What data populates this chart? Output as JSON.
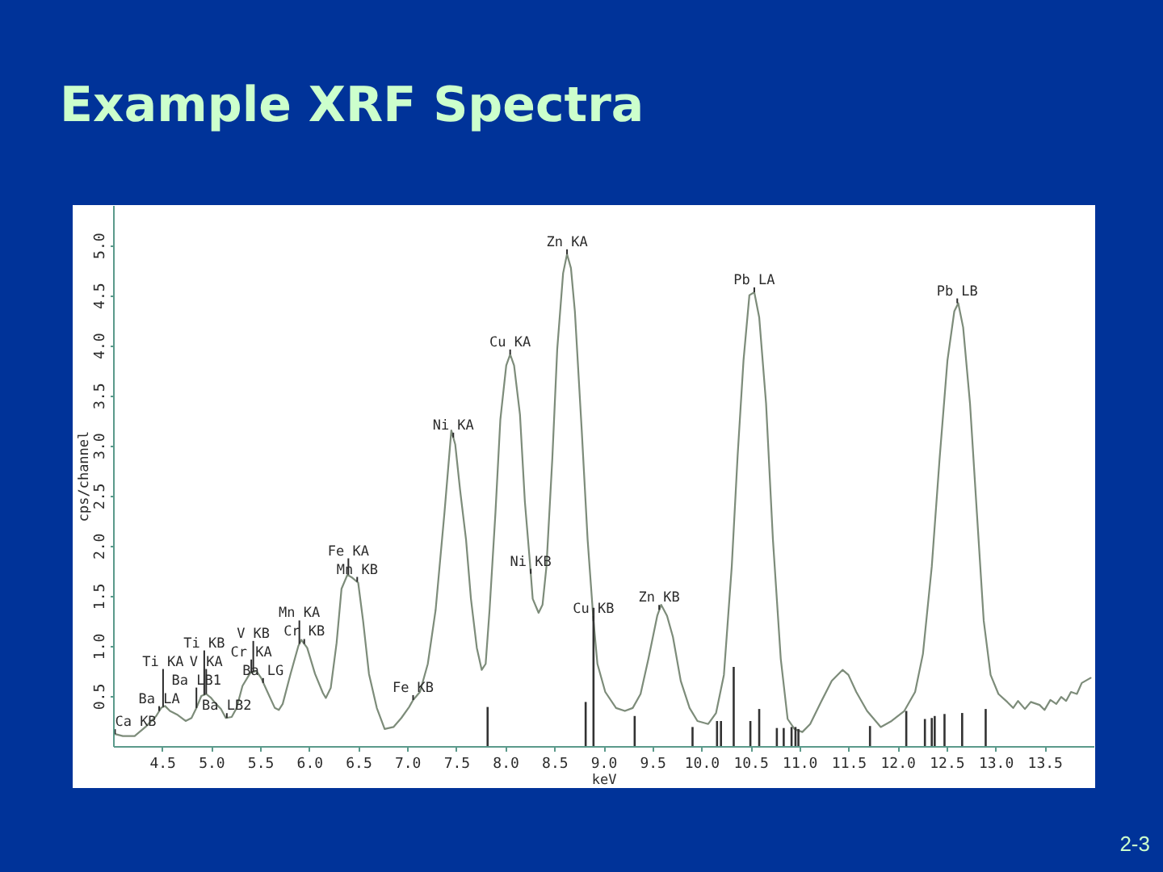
{
  "chart_data": {
    "type": "line",
    "title": "Example XRF Spectra",
    "xlabel": "keV",
    "ylabel": "cps/channel",
    "xlim": [
      4,
      14
    ],
    "ylim": [
      0,
      5.4
    ],
    "xticks": [
      4.5,
      {
        "value": 5,
        "label": "5.0"
      },
      5.5,
      {
        "value": 6,
        "label": "6.0"
      },
      6.5,
      {
        "value": 7,
        "label": "7.0"
      },
      7.5,
      {
        "value": 8,
        "label": "8.0"
      },
      8.5,
      {
        "value": 9,
        "label": "9.0"
      },
      9.5,
      {
        "value": 10,
        "label": "10.0"
      },
      10.5,
      {
        "value": 11,
        "label": "11.0"
      },
      11.5,
      {
        "value": 12,
        "label": "12.0"
      },
      12.5,
      {
        "value": 13,
        "label": "13.0"
      },
      13.5
    ],
    "yticks": [
      0.5,
      {
        "value": 1,
        "label": "1.0"
      },
      1.5,
      {
        "value": 2,
        "label": "2.0"
      },
      2.5,
      {
        "value": 3,
        "label": "3.0"
      },
      3.5,
      {
        "value": 4,
        "label": "4.0"
      },
      4.5,
      {
        "value": 5,
        "label": "5.0"
      }
    ],
    "series": [
      {
        "color": "#7d8c7a",
        "x": [
          4.02,
          4.1,
          4.22,
          4.33,
          4.44,
          4.49,
          4.53,
          4.58,
          4.66,
          4.74,
          4.8,
          4.85,
          4.9,
          4.95,
          5.0,
          5.05,
          5.1,
          5.15,
          5.21,
          5.26,
          5.32,
          5.4,
          5.46,
          5.51,
          5.57,
          5.65,
          5.69,
          5.73,
          5.81,
          5.89,
          5.92,
          5.98,
          6.06,
          6.14,
          6.17,
          6.22,
          6.28,
          6.33,
          6.39,
          6.44,
          6.5,
          6.55,
          6.61,
          6.69,
          6.77,
          6.86,
          6.94,
          7.02,
          7.06,
          7.13,
          7.21,
          7.29,
          7.38,
          7.45,
          7.49,
          7.54,
          7.6,
          7.65,
          7.71,
          7.76,
          7.8,
          7.84,
          7.9,
          7.95,
          8.01,
          8.05,
          8.09,
          8.15,
          8.2,
          8.25,
          8.28,
          8.34,
          8.38,
          8.42,
          8.48,
          8.53,
          8.59,
          8.63,
          8.67,
          8.71,
          8.78,
          8.84,
          8.9,
          8.94,
          9.02,
          9.13,
          9.22,
          9.3,
          9.38,
          9.46,
          9.55,
          9.59,
          9.65,
          9.71,
          9.79,
          9.88,
          9.96,
          10.07,
          10.15,
          10.23,
          10.31,
          10.37,
          10.43,
          10.49,
          10.54,
          10.59,
          10.66,
          10.73,
          10.81,
          10.88,
          10.95,
          11.03,
          11.11,
          11.22,
          11.33,
          11.44,
          11.5,
          11.58,
          11.69,
          11.83,
          11.94,
          12.07,
          12.18,
          12.26,
          12.35,
          12.43,
          12.51,
          12.58,
          12.62,
          12.67,
          12.74,
          12.81,
          12.88,
          12.95,
          13.03,
          13.12,
          13.18,
          13.23,
          13.3,
          13.36,
          13.45,
          13.5,
          13.56,
          13.62,
          13.67,
          13.72,
          13.77,
          13.83,
          13.88,
          13.97
        ],
        "values": [
          0.12,
          0.1,
          0.1,
          0.19,
          0.3,
          0.38,
          0.4,
          0.35,
          0.31,
          0.25,
          0.28,
          0.38,
          0.5,
          0.52,
          0.48,
          0.42,
          0.37,
          0.28,
          0.29,
          0.38,
          0.6,
          0.73,
          0.75,
          0.68,
          0.55,
          0.38,
          0.36,
          0.42,
          0.72,
          1.0,
          1.06,
          0.98,
          0.72,
          0.53,
          0.48,
          0.58,
          1.03,
          1.57,
          1.71,
          1.68,
          1.63,
          1.25,
          0.72,
          0.38,
          0.17,
          0.19,
          0.28,
          0.39,
          0.46,
          0.54,
          0.82,
          1.36,
          2.33,
          3.15,
          3.01,
          2.55,
          2.06,
          1.47,
          0.98,
          0.76,
          0.82,
          1.36,
          2.33,
          3.26,
          3.8,
          3.91,
          3.8,
          3.31,
          2.44,
          1.85,
          1.47,
          1.33,
          1.41,
          1.79,
          2.87,
          3.96,
          4.72,
          4.91,
          4.77,
          4.34,
          3.15,
          2.06,
          1.25,
          0.82,
          0.54,
          0.38,
          0.35,
          0.38,
          0.52,
          0.87,
          1.3,
          1.41,
          1.3,
          1.09,
          0.65,
          0.38,
          0.25,
          0.22,
          0.33,
          0.71,
          1.79,
          2.9,
          3.85,
          4.5,
          4.53,
          4.28,
          3.42,
          2.06,
          0.87,
          0.27,
          0.17,
          0.14,
          0.22,
          0.44,
          0.65,
          0.76,
          0.71,
          0.54,
          0.35,
          0.19,
          0.25,
          0.35,
          0.54,
          0.92,
          1.79,
          2.87,
          3.85,
          4.34,
          4.42,
          4.18,
          3.42,
          2.33,
          1.25,
          0.71,
          0.52,
          0.44,
          0.38,
          0.45,
          0.37,
          0.44,
          0.41,
          0.36,
          0.46,
          0.42,
          0.49,
          0.45,
          0.54,
          0.52,
          0.63,
          0.68
        ]
      },
      {
        "type": "bar",
        "color": "#333333",
        "x": [
          7.82,
          8.82,
          8.9,
          9.32,
          9.91,
          10.16,
          10.2,
          10.33,
          10.5,
          10.59,
          10.77,
          10.84,
          10.92,
          10.96,
          10.99,
          11.72,
          12.09,
          12.28,
          12.35,
          12.38,
          12.48,
          12.66,
          12.9
        ],
        "values": [
          0.39,
          0.44,
          1.38,
          0.3,
          0.19,
          0.25,
          0.25,
          0.79,
          0.25,
          0.37,
          0.18,
          0.18,
          0.19,
          0.19,
          0.17,
          0.2,
          0.35,
          0.27,
          0.28,
          0.3,
          0.32,
          0.33,
          0.37
        ]
      }
    ],
    "annotations": [
      {
        "text": "Ca KB",
        "x": 4.02,
        "y": 0.12
      },
      {
        "text": "Ba LA",
        "x": 4.47,
        "y": 0.35
      },
      {
        "text": "Ti KA",
        "x": 4.51,
        "y": 0.39
      },
      {
        "text": "Ba LB1",
        "x": 4.85,
        "y": 0.38
      },
      {
        "text": "Ti KB",
        "x": 4.93,
        "y": 0.51
      },
      {
        "text": "V KA",
        "x": 4.95,
        "y": 0.52
      },
      {
        "text": "Ba LB2",
        "x": 5.16,
        "y": 0.28
      },
      {
        "text": "V KB",
        "x": 5.43,
        "y": 0.74
      },
      {
        "text": "Cr KA",
        "x": 5.41,
        "y": 0.73
      },
      {
        "text": "Ba LG",
        "x": 5.53,
        "y": 0.63
      },
      {
        "text": "Cr KB",
        "x": 5.95,
        "y": 1.02
      },
      {
        "text": "Mn KA",
        "x": 5.9,
        "y": 1.02
      },
      {
        "text": "Fe KA",
        "x": 6.4,
        "y": 1.71
      },
      {
        "text": "Mn KB",
        "x": 6.49,
        "y": 1.64
      },
      {
        "text": "Fe KB",
        "x": 7.06,
        "y": 0.46
      },
      {
        "text": "Ni KA",
        "x": 7.47,
        "y": 3.08
      },
      {
        "text": "Cu KA",
        "x": 8.05,
        "y": 3.91
      },
      {
        "text": "Zn KA",
        "x": 8.63,
        "y": 4.91
      },
      {
        "text": "Ni KB",
        "x": 8.26,
        "y": 1.72
      },
      {
        "text": "Cu KB",
        "x": 8.9,
        "y": 1.25
      },
      {
        "text": "Zn KB",
        "x": 9.57,
        "y": 1.36
      },
      {
        "text": "Pb LA",
        "x": 10.54,
        "y": 4.53
      },
      {
        "text": "Pb LB",
        "x": 12.61,
        "y": 4.42
      },
      "2-3"
    ]
  }
}
